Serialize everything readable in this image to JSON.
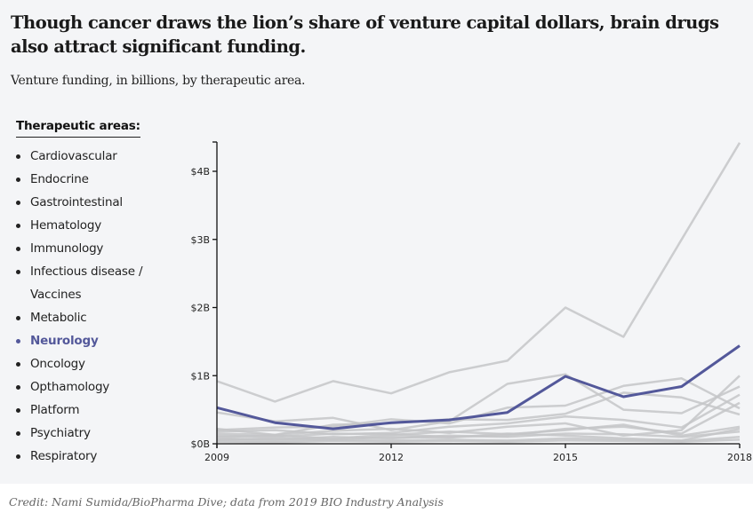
{
  "header": {
    "title": "Though cancer draws the lion’s share of venture capital dollars, brain drugs also attract significant funding.",
    "subtitle": "Venture funding, in billions, by therapeutic area."
  },
  "legend": {
    "title": "Therapeutic areas:",
    "items": [
      {
        "label": "Cardiovascular",
        "active": false
      },
      {
        "label": "Endocrine",
        "active": false
      },
      {
        "label": "Gastrointestinal",
        "active": false
      },
      {
        "label": "Hematology",
        "active": false
      },
      {
        "label": "Immunology",
        "active": false
      },
      {
        "label": "Infectious disease / Vaccines",
        "active": false
      },
      {
        "label": "Metabolic",
        "active": false
      },
      {
        "label": "Neurology",
        "active": true
      },
      {
        "label": "Oncology",
        "active": false
      },
      {
        "label": "Opthamology",
        "active": false
      },
      {
        "label": "Platform",
        "active": false
      },
      {
        "label": "Psychiatry",
        "active": false
      },
      {
        "label": "Respiratory",
        "active": false
      }
    ]
  },
  "colors": {
    "highlight": "#53589a",
    "muted": "#c4c5c8",
    "axis": "#111111",
    "background": "#f4f5f7"
  },
  "credit": "Credit: Nami Sumida/BioPharma Dive; data from 2019 BIO Industry Analysis",
  "chart_data": {
    "type": "line",
    "title": "Venture funding, in billions, by therapeutic area.",
    "xlabel": "",
    "ylabel": "",
    "x": [
      2009,
      2010,
      2011,
      2012,
      2013,
      2014,
      2015,
      2016,
      2017,
      2018
    ],
    "xlim": [
      2009,
      2018
    ],
    "ylim": [
      0,
      4.4
    ],
    "x_ticks": [
      2009,
      2012,
      2015,
      2018
    ],
    "y_ticks": [
      0,
      1,
      2,
      3,
      4
    ],
    "y_tick_labels": [
      "$0B",
      "$1B",
      "$2B",
      "$3B",
      "$4B"
    ],
    "grid": false,
    "highlight_series": "Neurology",
    "series": [
      {
        "name": "Oncology",
        "values": [
          0.92,
          0.62,
          0.92,
          0.74,
          1.05,
          1.22,
          2.0,
          1.57,
          3.0,
          4.42
        ]
      },
      {
        "name": "Neurology",
        "values": [
          0.53,
          0.31,
          0.22,
          0.31,
          0.35,
          0.46,
          0.99,
          0.69,
          0.84,
          1.44
        ]
      },
      {
        "name": "Infectious disease / Vaccines",
        "values": [
          0.46,
          0.33,
          0.38,
          0.2,
          0.33,
          0.88,
          1.02,
          0.5,
          0.45,
          0.84
        ]
      },
      {
        "name": "Platform",
        "values": [
          0.2,
          0.24,
          0.25,
          0.36,
          0.3,
          0.53,
          0.56,
          0.85,
          0.96,
          0.52
        ]
      },
      {
        "name": "Immunology",
        "values": [
          0.22,
          0.13,
          0.28,
          0.3,
          0.36,
          0.35,
          0.44,
          0.75,
          0.68,
          0.43
        ]
      },
      {
        "name": "Metabolic",
        "values": [
          0.18,
          0.2,
          0.14,
          0.16,
          0.25,
          0.3,
          0.4,
          0.35,
          0.24,
          0.72
        ]
      },
      {
        "name": "Cardiovascular",
        "values": [
          0.15,
          0.13,
          0.19,
          0.22,
          0.16,
          0.25,
          0.3,
          0.12,
          0.2,
          1.0
        ]
      },
      {
        "name": "Endocrine",
        "values": [
          0.12,
          0.1,
          0.15,
          0.14,
          0.1,
          0.12,
          0.22,
          0.25,
          0.15,
          0.6
        ]
      },
      {
        "name": "Hematology",
        "values": [
          0.1,
          0.12,
          0.08,
          0.13,
          0.18,
          0.14,
          0.2,
          0.28,
          0.12,
          0.25
        ]
      },
      {
        "name": "Respiratory",
        "values": [
          0.08,
          0.06,
          0.1,
          0.08,
          0.12,
          0.1,
          0.15,
          0.14,
          0.1,
          0.18
        ]
      },
      {
        "name": "Gastrointestinal",
        "values": [
          0.06,
          0.08,
          0.06,
          0.1,
          0.09,
          0.15,
          0.12,
          0.08,
          0.05,
          0.22
        ]
      },
      {
        "name": "Opthamology",
        "values": [
          0.05,
          0.04,
          0.06,
          0.05,
          0.06,
          0.05,
          0.08,
          0.06,
          0.04,
          0.1
        ]
      },
      {
        "name": "Psychiatry",
        "values": [
          0.03,
          0.02,
          0.04,
          0.03,
          0.04,
          0.03,
          0.05,
          0.04,
          0.03,
          0.06
        ]
      }
    ]
  }
}
